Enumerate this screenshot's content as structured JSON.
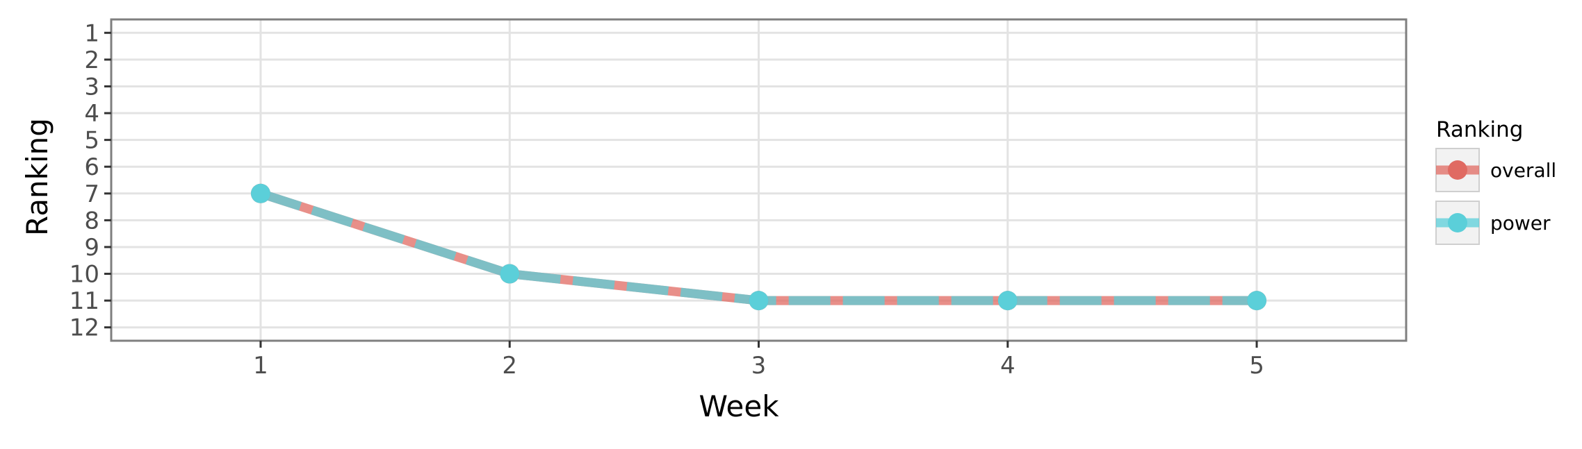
{
  "chart_data": {
    "type": "line",
    "title": "",
    "xlabel": "Week",
    "ylabel": "Ranking",
    "x": [
      1,
      2,
      3,
      4,
      5
    ],
    "x_ticks": [
      "1",
      "2",
      "3",
      "4",
      "5"
    ],
    "y_ticks": [
      "1",
      "2",
      "3",
      "4",
      "5",
      "6",
      "7",
      "8",
      "9",
      "10",
      "11",
      "12"
    ],
    "xlim": [
      0.4,
      5.6
    ],
    "ylim": [
      12.5,
      0.5
    ],
    "y_reversed": true,
    "grid": true,
    "legend": {
      "title": "Ranking",
      "placement": "right"
    },
    "series": [
      {
        "name": "overall",
        "values": [
          7,
          10,
          11,
          11,
          11
        ],
        "color": "#e06a62",
        "line_style": "solid"
      },
      {
        "name": "power",
        "values": [
          7,
          10,
          11,
          11,
          11
        ],
        "color": "#5bcfd9",
        "line_style": "dashed"
      }
    ]
  }
}
